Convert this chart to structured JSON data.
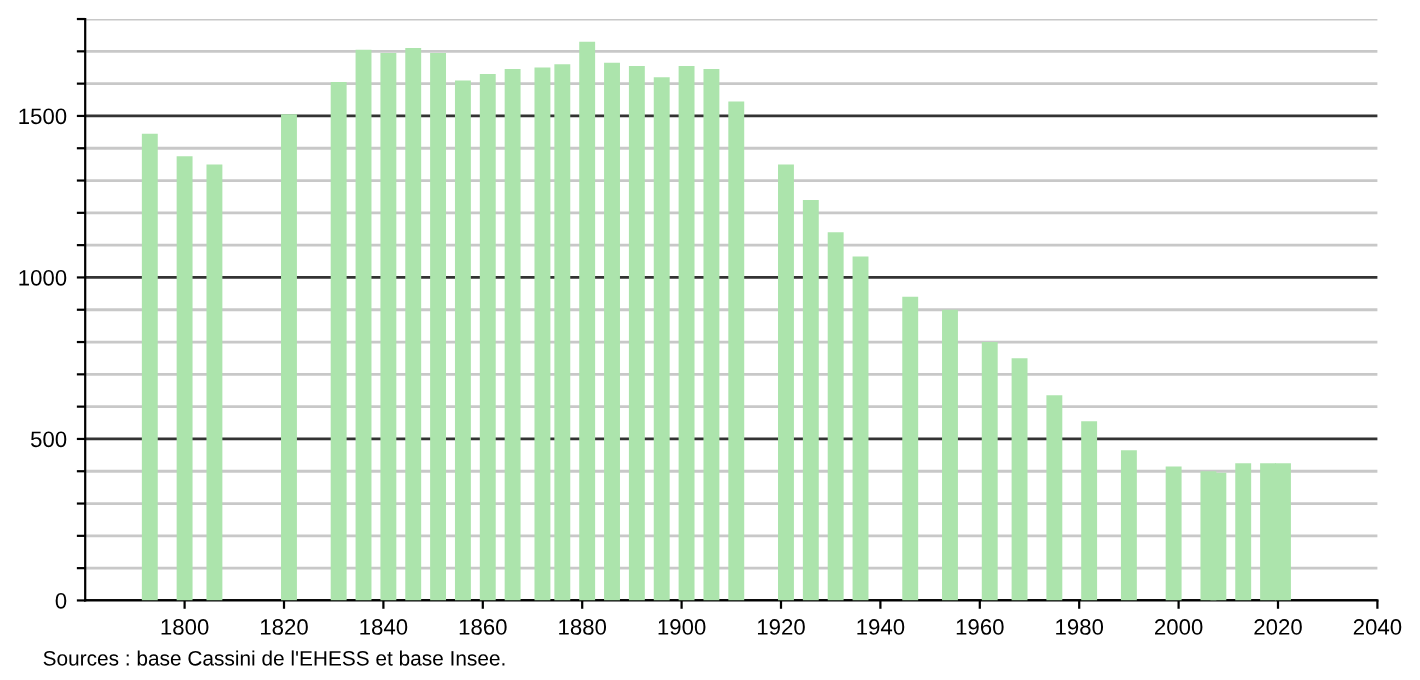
{
  "chart_data": {
    "type": "bar",
    "x": [
      1793,
      1800,
      1806,
      1821,
      1831,
      1836,
      1841,
      1846,
      1851,
      1856,
      1861,
      1866,
      1872,
      1876,
      1881,
      1886,
      1891,
      1896,
      1901,
      1906,
      1911,
      1921,
      1926,
      1931,
      1936,
      1946,
      1954,
      1962,
      1968,
      1975,
      1982,
      1990,
      1999,
      2006,
      2008,
      2013,
      2018,
      2021
    ],
    "values": [
      1445,
      1375,
      1350,
      1505,
      1605,
      1705,
      1695,
      1710,
      1695,
      1610,
      1630,
      1645,
      1650,
      1660,
      1730,
      1665,
      1655,
      1620,
      1655,
      1645,
      1545,
      1350,
      1240,
      1140,
      1065,
      940,
      900,
      800,
      750,
      635,
      555,
      465,
      415,
      400,
      395,
      425,
      425,
      425
    ],
    "color": "#ace4ac",
    "xlim": [
      1780,
      2040
    ],
    "xticks": [
      1800,
      1820,
      1840,
      1860,
      1880,
      1900,
      1920,
      1940,
      1960,
      1980,
      2000,
      2020,
      2040
    ],
    "ylim": [
      0,
      1800
    ],
    "yticks": [
      0,
      {
        "value": 100,
        "label": null
      },
      {
        "value": 200,
        "label": null
      },
      {
        "value": 300,
        "label": null
      },
      {
        "value": 400,
        "label": null
      },
      500,
      {
        "value": 600,
        "label": null
      },
      {
        "value": 700,
        "label": null
      },
      {
        "value": 800,
        "label": null
      },
      {
        "value": 900,
        "label": null
      },
      1000,
      {
        "value": 1100,
        "label": null
      },
      {
        "value": 1200,
        "label": null
      },
      {
        "value": 1300,
        "label": null
      },
      {
        "value": 1400,
        "label": null
      },
      1500,
      {
        "value": 1600,
        "label": null
      },
      {
        "value": 1700,
        "label": null
      },
      {
        "value": 1800,
        "label": null
      }
    ],
    "grid": "y",
    "annotations": [
      "Sources : base Cassini de l'EHESS et base Insee."
    ]
  }
}
